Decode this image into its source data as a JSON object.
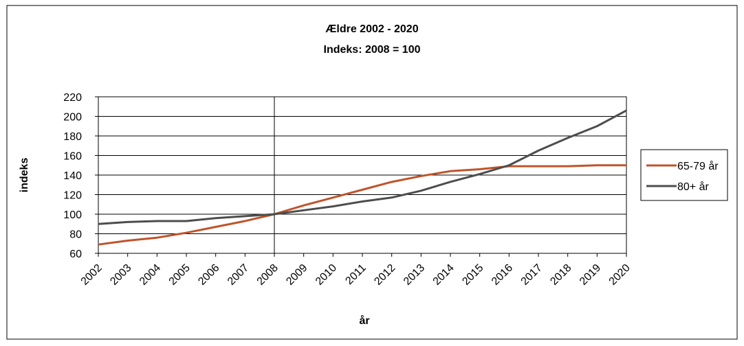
{
  "chart_data": {
    "type": "line",
    "title": "Ældre 2002 - 2020",
    "subtitle": "Indeks: 2008 = 100",
    "xlabel": "år",
    "ylabel": "indeks",
    "categories": [
      "2002",
      "2003",
      "2004",
      "2005",
      "2006",
      "2007",
      "2008",
      "2009",
      "2010",
      "2011",
      "2012",
      "2013",
      "2014",
      "2015",
      "2016",
      "2017",
      "2018",
      "2019",
      "2020"
    ],
    "ylim": [
      60,
      220
    ],
    "yticks": [
      "60",
      "80",
      "100",
      "120",
      "140",
      "160",
      "180",
      "200",
      "220"
    ],
    "grid": true,
    "legend_position": "right",
    "series": [
      {
        "name": "65-79 år",
        "color": "#c0532a",
        "values": [
          69,
          73,
          76,
          81,
          87,
          93,
          100,
          109,
          117,
          125,
          133,
          139,
          144,
          146,
          149,
          149,
          149,
          150,
          150
        ]
      },
      {
        "name": "80+ år",
        "color": "#4d4d4d",
        "values": [
          90,
          92,
          93,
          93,
          96,
          98,
          100,
          104,
          108,
          113,
          117,
          124,
          133,
          141,
          150,
          165,
          178,
          190,
          206
        ]
      }
    ]
  }
}
